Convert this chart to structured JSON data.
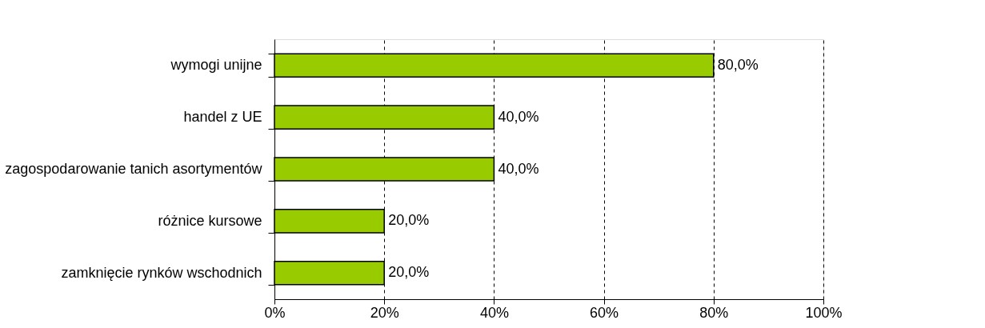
{
  "chart_data": {
    "type": "bar",
    "orientation": "horizontal",
    "categories": [
      "wymogi unijne",
      "handel z UE",
      "zagospodarowanie tanich asortymentów",
      "różnice kursowe",
      "zamknięcie rynków wschodnich"
    ],
    "values": [
      80,
      40,
      40,
      20,
      20
    ],
    "value_labels": [
      "80,0%",
      "40,0%",
      "40,0%",
      "20,0%",
      "20,0%"
    ],
    "color": "#99cc00",
    "xlim": [
      0,
      100
    ],
    "xticks": [
      {
        "value": 0,
        "label": "0%"
      },
      {
        "value": 20,
        "label": "20%"
      },
      {
        "value": 40,
        "label": "40%"
      },
      {
        "value": 60,
        "label": "60%"
      },
      {
        "value": 80,
        "label": "80%"
      },
      {
        "value": 100,
        "label": "100%"
      }
    ],
    "grid": "x"
  }
}
